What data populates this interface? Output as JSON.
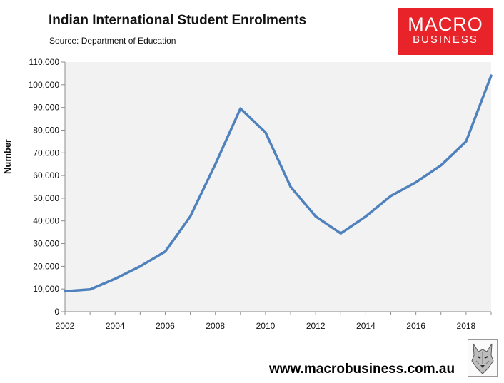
{
  "title": "Indian International Student Enrolments",
  "source": "Source: Department of Education",
  "logo": {
    "line1": "MACRO",
    "line2": "BUSINESS"
  },
  "url": "www.macrobusiness.com.au",
  "colors": {
    "line": "#4f81bd",
    "plot_bg": "#f2f2f2",
    "logo_bg": "#e8242a"
  },
  "chart_data": {
    "type": "line",
    "title": "Indian International Student Enrolments",
    "ylabel": "Number",
    "xlabel": "",
    "ylim": [
      0,
      110000
    ],
    "xlim": [
      2002,
      2019
    ],
    "y_ticks": [
      "0",
      "10,000",
      "20,000",
      "30,000",
      "40,000",
      "50,000",
      "60,000",
      "70,000",
      "80,000",
      "90,000",
      "100,000",
      "110,000"
    ],
    "x_ticks": [
      "2002",
      "2004",
      "2006",
      "2008",
      "2010",
      "2012",
      "2014",
      "2016",
      "2018"
    ],
    "grid": false,
    "series": [
      {
        "x": [
          2002,
          2003,
          2004,
          2005,
          2006,
          2007,
          2008,
          2009,
          2010,
          2011,
          2012,
          2013,
          2014,
          2015,
          2016,
          2017,
          2018,
          2019
        ],
        "values": [
          9000,
          9800,
          14500,
          20000,
          26500,
          42000,
          65000,
          89500,
          79000,
          55000,
          42000,
          34500,
          42000,
          51000,
          57000,
          64500,
          75000,
          104000
        ]
      }
    ]
  }
}
